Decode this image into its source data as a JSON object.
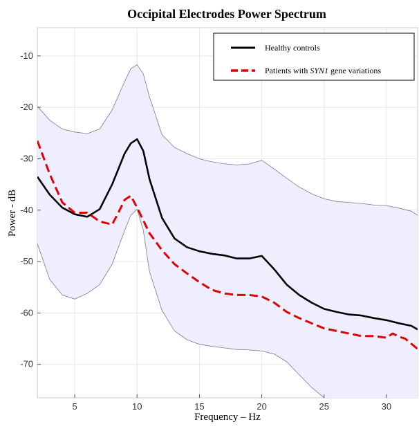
{
  "chart_data": {
    "type": "line",
    "title": "Occipital Electrodes Power Spectrum",
    "xlabel": "Frequency – Hz",
    "ylabel": "Power - dB",
    "xlim": [
      2,
      32.5
    ],
    "ylim": [
      -76.5,
      -4.5
    ],
    "xticks": [
      5,
      10,
      15,
      20,
      25,
      30
    ],
    "yticks": [
      -10,
      -20,
      -30,
      -40,
      -50,
      -60,
      -70
    ],
    "grid": true,
    "legend_position": "top-right",
    "legend": [
      {
        "prefix": "Healthy controls",
        "italic": "",
        "suffix": ""
      },
      {
        "prefix": "Patients with ",
        "italic": "SYN1",
        "suffix": " gene variations"
      }
    ],
    "colors": {
      "controls": "#000000",
      "patients": "#e00000",
      "band_fill": "#eeeeff",
      "band_edge": "#7a7a90",
      "grid": "#e6e6ee"
    },
    "series": [
      {
        "name": "Healthy controls",
        "style": "solid",
        "x": [
          2,
          3,
          4,
          5,
          6,
          7,
          8,
          9,
          9.5,
          10,
          10.5,
          11,
          12,
          13,
          14,
          15,
          16,
          17,
          18,
          19,
          20,
          21,
          22,
          23,
          24,
          25,
          26,
          27,
          28,
          29,
          30,
          31,
          32,
          32.5
        ],
        "y": [
          -33.5,
          -37,
          -39.5,
          -40.8,
          -41.3,
          -39.8,
          -35,
          -29,
          -27,
          -26.2,
          -28.5,
          -34,
          -41.5,
          -45.5,
          -47.2,
          -48,
          -48.5,
          -48.8,
          -49.4,
          -49.4,
          -48.9,
          -51.5,
          -54.5,
          -56.5,
          -58,
          -59.2,
          -59.8,
          -60.3,
          -60.5,
          -61,
          -61.4,
          -62,
          -62.5,
          -63.2
        ]
      },
      {
        "name": "Patients with SYN1 gene variations",
        "style": "dashed",
        "x": [
          2,
          3,
          4,
          5,
          6,
          7,
          8,
          8.5,
          9,
          9.5,
          10,
          11,
          12,
          13,
          14,
          15,
          16,
          17,
          18,
          19,
          20,
          21,
          22,
          23,
          24,
          25,
          26,
          27,
          28,
          29,
          30,
          30.5,
          31,
          31.5,
          32,
          32.5
        ],
        "y": [
          -26.5,
          -33,
          -38.5,
          -40.5,
          -40.5,
          -42.2,
          -42.8,
          -40.5,
          -38,
          -37.2,
          -39.5,
          -44.5,
          -47.8,
          -50.5,
          -52.3,
          -54,
          -55.5,
          -56.2,
          -56.5,
          -56.5,
          -56.8,
          -58,
          -59.8,
          -61,
          -62,
          -63,
          -63.5,
          -64,
          -64.5,
          -64.5,
          -64.8,
          -64,
          -64.6,
          -65,
          -66,
          -67
        ]
      }
    ],
    "band": {
      "x": [
        2,
        3,
        4,
        5,
        6,
        7,
        8,
        9,
        9.5,
        10,
        10.5,
        11,
        12,
        13,
        14,
        15,
        16,
        17,
        18,
        19,
        20,
        21,
        22,
        23,
        24,
        25,
        26,
        27,
        28,
        29,
        30,
        31,
        32,
        32.5
      ],
      "upper": [
        -19.8,
        -22.5,
        -24.2,
        -24.8,
        -25.1,
        -24.2,
        -20.5,
        -15,
        -12.5,
        -11.7,
        -13.5,
        -18,
        -25.3,
        -27.8,
        -29,
        -30,
        -30.6,
        -31,
        -31.2,
        -31,
        -30.3,
        -32,
        -33.8,
        -35.5,
        -36.8,
        -37.8,
        -38.3,
        -38.5,
        -38.7,
        -39,
        -39.1,
        -39.6,
        -40.2,
        -41
      ],
      "lower": [
        -46.5,
        -53.5,
        -56.5,
        -57.3,
        -56.2,
        -54.5,
        -50.5,
        -44,
        -41,
        -39.8,
        -44,
        -52,
        -59.5,
        -63.5,
        -65.2,
        -66.1,
        -66.5,
        -66.8,
        -67.1,
        -67.2,
        -67.4,
        -68,
        -69.5,
        -72,
        -74.5,
        -76.5,
        -77.5,
        -78.5,
        -79.5,
        -80,
        -80.5,
        -81,
        -81.5,
        -82
      ]
    }
  }
}
